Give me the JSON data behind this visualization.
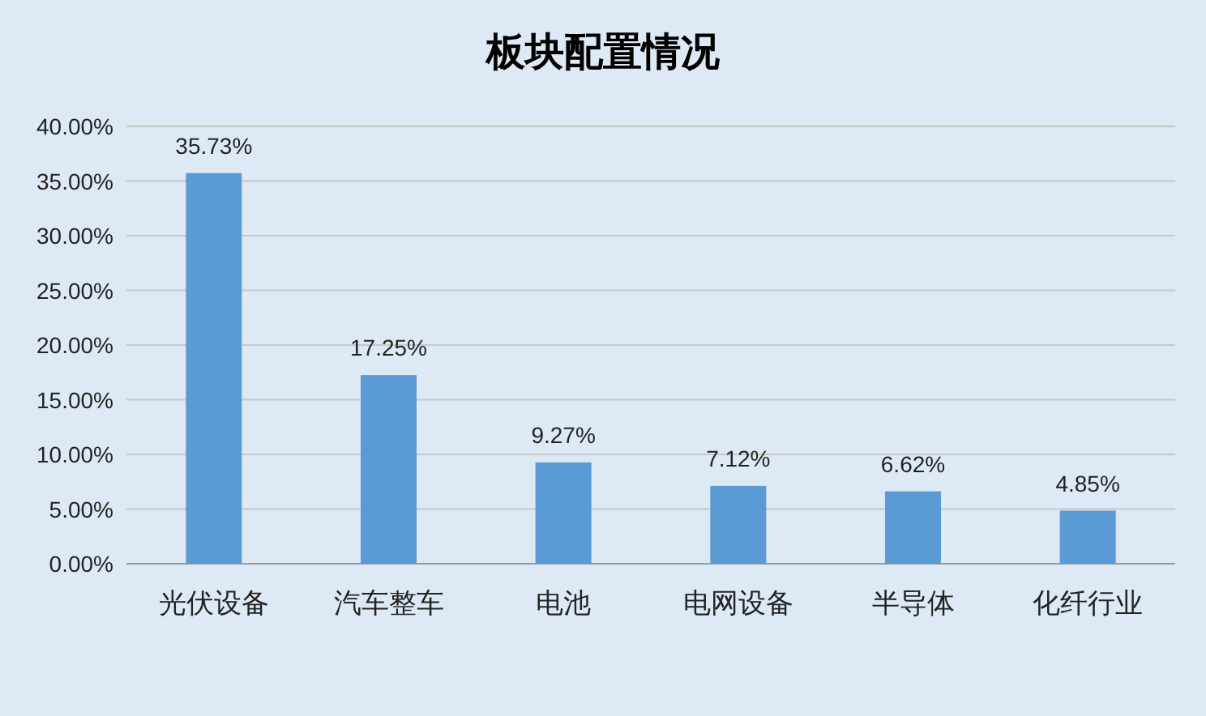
{
  "chart_data": {
    "type": "bar",
    "title": "板块配置情况",
    "categories": [
      "光伏设备",
      "汽车整车",
      "电池",
      "电网设备",
      "半导体",
      "化纤行业"
    ],
    "values": [
      35.73,
      17.25,
      9.27,
      7.12,
      6.62,
      4.85
    ],
    "value_labels": [
      "35.73%",
      "17.25%",
      "9.27%",
      "7.12%",
      "6.62%",
      "4.85%"
    ],
    "color": "#5b9bd5",
    "ylim": [
      0,
      40
    ],
    "yticks": [
      {
        "value": 0,
        "label": "0.00%"
      },
      {
        "value": 5,
        "label": "5.00%"
      },
      {
        "value": 10,
        "label": "10.00%"
      },
      {
        "value": 15,
        "label": "15.00%"
      },
      {
        "value": 20,
        "label": "20.00%"
      },
      {
        "value": 25,
        "label": "25.00%"
      },
      {
        "value": 30,
        "label": "30.00%"
      },
      {
        "value": 35,
        "label": "35.00%"
      },
      {
        "value": 40,
        "label": "40.00%"
      }
    ],
    "grid": "y"
  }
}
